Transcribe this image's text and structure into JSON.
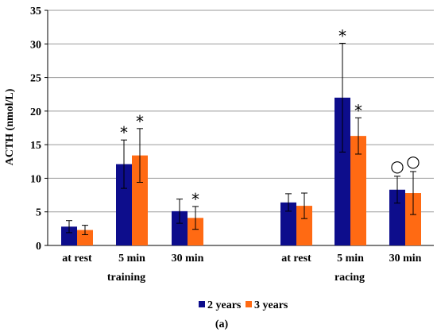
{
  "chart_data": {
    "type": "bar",
    "ylabel": "ACTH (nmol/L)",
    "ylim": [
      0,
      35
    ],
    "yticks": [
      0,
      5,
      10,
      15,
      20,
      25,
      30,
      35
    ],
    "grid": true,
    "categories": [
      "at rest",
      "5 min",
      "30 min",
      "at rest",
      "5 min",
      "30 min"
    ],
    "groups": [
      {
        "label": "training",
        "categories": [
          "at rest",
          "5 min",
          "30 min"
        ]
      },
      {
        "label": "racing",
        "categories": [
          "at rest",
          "5 min",
          "30 min"
        ]
      }
    ],
    "series": [
      {
        "name": "2 years",
        "color": "#0d0d8c",
        "values": [
          2.8,
          12.1,
          5.1,
          6.4,
          22.0,
          8.3
        ],
        "errors": [
          0.9,
          3.6,
          1.8,
          1.3,
          8.1,
          2.0
        ],
        "markers": [
          "",
          "*",
          "",
          "",
          "*",
          "○"
        ]
      },
      {
        "name": "3 years",
        "color": "#ff6a13",
        "values": [
          2.3,
          13.4,
          4.1,
          5.9,
          16.3,
          7.8
        ],
        "errors": [
          0.7,
          4.0,
          1.7,
          1.9,
          2.7,
          3.2
        ],
        "markers": [
          "",
          "*",
          "*",
          "",
          "*",
          "○"
        ]
      }
    ],
    "legend": "bottom"
  },
  "caption": "(a)"
}
